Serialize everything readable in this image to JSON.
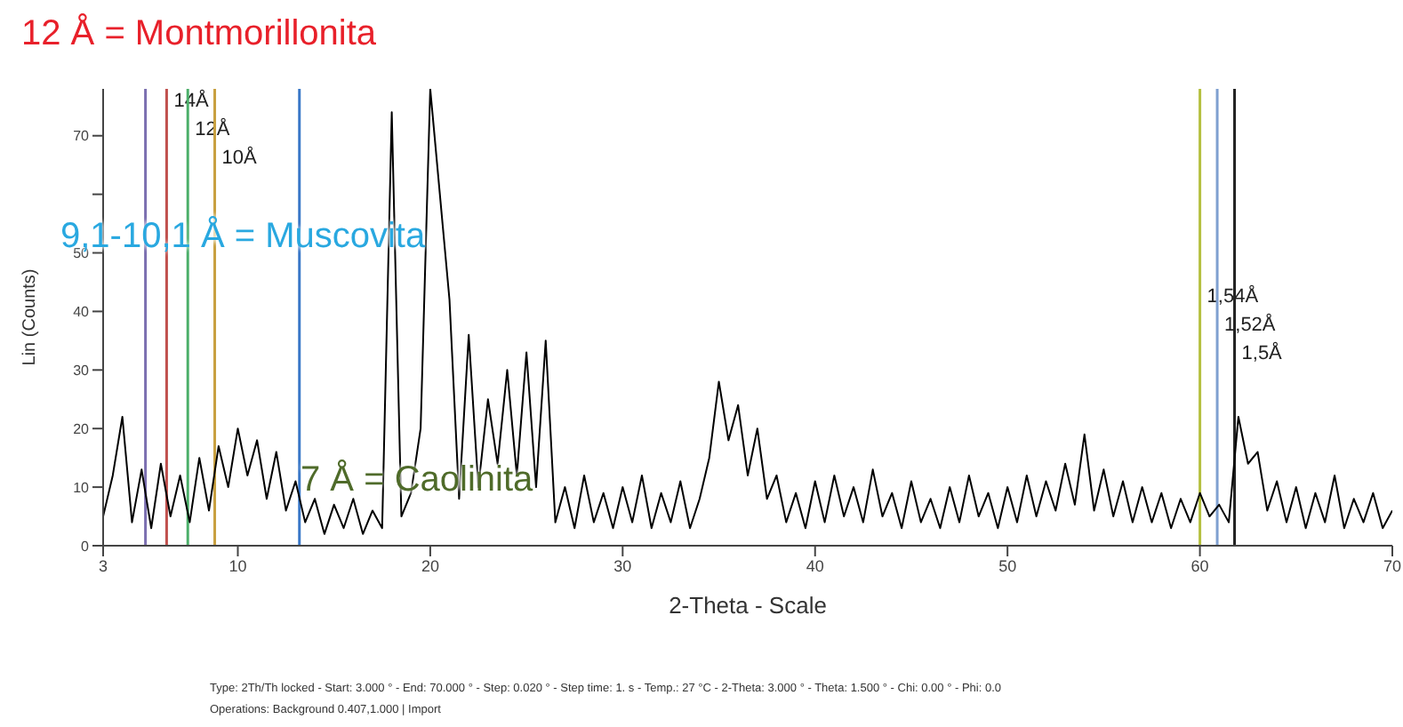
{
  "chart_data": {
    "type": "line",
    "xlabel": "2-Theta - Scale",
    "ylabel": "Lin (Counts)",
    "x": [
      3,
      3.5,
      4,
      4.5,
      5,
      5.5,
      6,
      6.5,
      7,
      7.5,
      8,
      8.5,
      9,
      9.5,
      10,
      10.5,
      11,
      11.5,
      12,
      12.5,
      13,
      13.5,
      14,
      14.5,
      15,
      15.5,
      16,
      16.5,
      17,
      17.5,
      18,
      18.5,
      19,
      19.5,
      20,
      20.5,
      21,
      21.5,
      22,
      22.5,
      23,
      23.5,
      24,
      24.5,
      25,
      25.5,
      26,
      26.5,
      27,
      27.5,
      28,
      28.5,
      29,
      29.5,
      30,
      30.5,
      31,
      31.5,
      32,
      32.5,
      33,
      33.5,
      34,
      34.5,
      35,
      35.5,
      36,
      36.5,
      37,
      37.5,
      38,
      38.5,
      39,
      39.5,
      40,
      40.5,
      41,
      41.5,
      42,
      42.5,
      43,
      43.5,
      44,
      44.5,
      45,
      45.5,
      46,
      46.5,
      47,
      47.5,
      48,
      48.5,
      49,
      49.5,
      50,
      50.5,
      51,
      51.5,
      52,
      52.5,
      53,
      53.5,
      54,
      54.5,
      55,
      55.5,
      56,
      56.5,
      57,
      57.5,
      58,
      58.5,
      59,
      59.5,
      60,
      60.5,
      61,
      61.5,
      62,
      62.5,
      63,
      63.5,
      64,
      64.5,
      65,
      65.5,
      66,
      66.5,
      67,
      67.5,
      68,
      68.5,
      69,
      69.5,
      70
    ],
    "series": [
      {
        "color": "#000000",
        "values": [
          5,
          12,
          22,
          4,
          13,
          3,
          14,
          5,
          12,
          4,
          15,
          6,
          17,
          10,
          20,
          12,
          18,
          8,
          16,
          6,
          11,
          4,
          8,
          2,
          7,
          3,
          8,
          2,
          6,
          3,
          74,
          5,
          9,
          20,
          78,
          60,
          42,
          8,
          36,
          10,
          25,
          14,
          30,
          12,
          33,
          10,
          35,
          4,
          10,
          3,
          12,
          4,
          9,
          3,
          10,
          4,
          12,
          3,
          9,
          4,
          11,
          3,
          8,
          15,
          28,
          18,
          24,
          12,
          20,
          8,
          12,
          4,
          9,
          3,
          11,
          4,
          12,
          5,
          10,
          4,
          13,
          5,
          9,
          3,
          11,
          4,
          8,
          3,
          10,
          4,
          12,
          5,
          9,
          3,
          10,
          4,
          12,
          5,
          11,
          6,
          14,
          7,
          19,
          6,
          13,
          5,
          11,
          4,
          10,
          4,
          9,
          3,
          8,
          4,
          9,
          5,
          7,
          4,
          22,
          14,
          16,
          6,
          11,
          4,
          10,
          3,
          9,
          4,
          12,
          3,
          8,
          4,
          9,
          3,
          6
        ]
      }
    ],
    "xlim": [
      3,
      70
    ],
    "xticks": [
      3,
      10,
      20,
      30,
      40,
      50,
      60,
      70
    ],
    "ylim": [
      0,
      78
    ],
    "yticks": [
      0,
      10,
      20,
      30,
      40,
      50,
      {
        "value": 60,
        "label": null
      },
      70
    ],
    "legend": false,
    "marker": "none",
    "line_style": "solid",
    "ref_lines": [
      {
        "axis": "x",
        "value": 5.2,
        "label": null,
        "color": "#7b6fb0"
      },
      {
        "axis": "x",
        "value": 6.3,
        "label": "14Å",
        "color": "#c0504d"
      },
      {
        "axis": "x",
        "value": 7.4,
        "label": "12Å",
        "color": "#4caf6a"
      },
      {
        "axis": "x",
        "value": 8.8,
        "label": "10Å",
        "color": "#c8a040"
      },
      {
        "axis": "x",
        "value": 13.2,
        "label": null,
        "color": "#3a78c8"
      },
      {
        "axis": "x",
        "value": 60.0,
        "label": "1,54Å",
        "color": "#b5c040"
      },
      {
        "axis": "x",
        "value": 60.9,
        "label": "1,52Å",
        "color": "#7fa0d0"
      },
      {
        "axis": "x",
        "value": 61.8,
        "label": "1,5Å",
        "color": "#222222"
      }
    ],
    "annotations": [
      "12 Å = Montmorillonita",
      "9,1-10,1 Å = Muscovita",
      "7 Å = Caolinita",
      "Type: 2Th/Th locked - Start: 3.000 ° - End: 70.000 ° - Step: 0.020 ° - Step time: 1. s - Temp.: 27 °C - 2-Theta: 3.000 ° - Theta: 1.500 ° - Chi: 0.00 ° - Phi: 0.0",
      "Operations: Background 0.407,1.000 | Import"
    ]
  }
}
